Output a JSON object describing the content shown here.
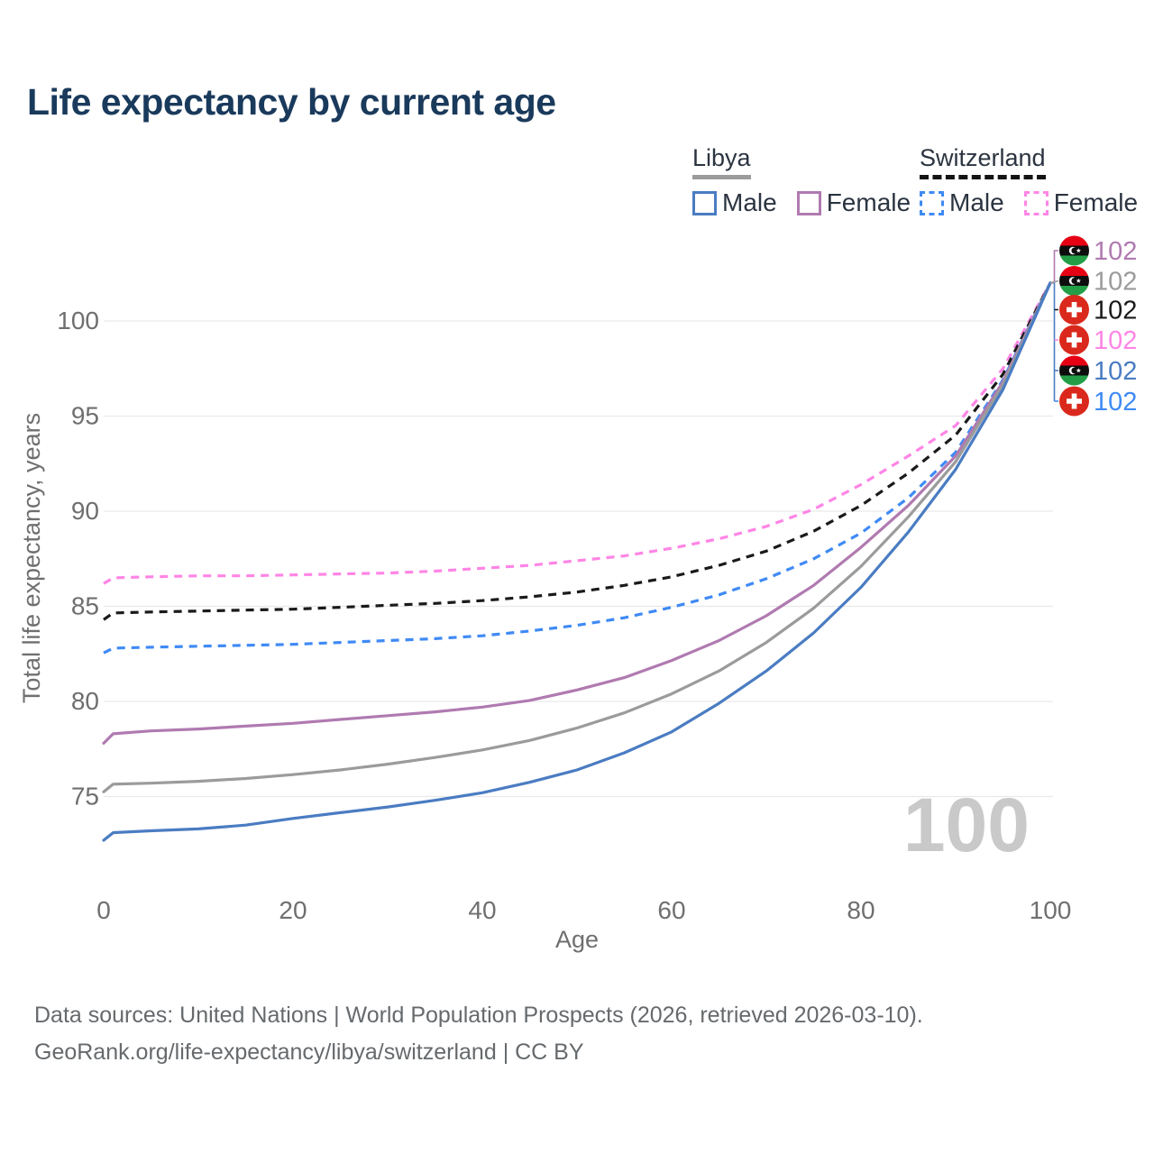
{
  "title": "Life expectancy by current age",
  "legend": {
    "groups": [
      {
        "label": "Libya",
        "underline_style": "solid",
        "underline_color": "#9b9b9b",
        "items": [
          {
            "label": "Male",
            "color": "#4a7cc2",
            "dash": false
          },
          {
            "label": "Female",
            "color": "#b07ab0",
            "dash": false
          }
        ]
      },
      {
        "label": "Switzerland",
        "underline_style": "dashed",
        "underline_color": "#141414",
        "items": [
          {
            "label": "Male",
            "color": "#3f8af5",
            "dash": true
          },
          {
            "label": "Female",
            "color": "#ff85e6",
            "dash": true
          }
        ]
      }
    ]
  },
  "chart_data": {
    "type": "line",
    "title": "Life expectancy by current age",
    "xlabel": "Age",
    "ylabel": "Total life expectancy, years",
    "xlim": [
      0,
      100
    ],
    "ylim": [
      72,
      103
    ],
    "x_ticks": [
      0,
      20,
      40,
      60,
      80,
      100
    ],
    "y_ticks": [
      75,
      80,
      85,
      90,
      95,
      100
    ],
    "grid": true,
    "legend_position": "top-right",
    "watermark_age": "100",
    "ages": [
      0,
      1,
      5,
      10,
      15,
      20,
      25,
      30,
      35,
      40,
      45,
      50,
      55,
      60,
      65,
      70,
      75,
      80,
      85,
      90,
      95,
      100
    ],
    "series": [
      {
        "id": "swiss_female",
        "name": "Switzerland Female",
        "country": "Switzerland",
        "sex": "Female",
        "color": "#ff85e6",
        "dash": true,
        "values": [
          86.2,
          86.5,
          86.55,
          86.6,
          86.6,
          86.65,
          86.7,
          86.75,
          86.85,
          87.0,
          87.15,
          87.4,
          87.65,
          88.05,
          88.55,
          89.2,
          90.1,
          91.4,
          92.9,
          94.5,
          97.5,
          102
        ]
      },
      {
        "id": "swiss_total",
        "name": "Switzerland",
        "country": "Switzerland",
        "sex": "Total",
        "color": "#1a1a1a",
        "dash": true,
        "values": [
          84.3,
          84.65,
          84.7,
          84.75,
          84.8,
          84.85,
          84.95,
          85.05,
          85.15,
          85.3,
          85.5,
          85.75,
          86.1,
          86.55,
          87.15,
          87.9,
          88.95,
          90.3,
          92.0,
          94.0,
          97.2,
          102
        ]
      },
      {
        "id": "swiss_male",
        "name": "Switzerland Male",
        "country": "Switzerland",
        "sex": "Male",
        "color": "#3f8af5",
        "dash": true,
        "values": [
          82.55,
          82.8,
          82.85,
          82.9,
          82.95,
          83.0,
          83.1,
          83.2,
          83.3,
          83.45,
          83.7,
          84.0,
          84.4,
          84.95,
          85.6,
          86.45,
          87.5,
          88.85,
          90.7,
          93.1,
          96.9,
          102
        ]
      },
      {
        "id": "libya_female",
        "name": "Libya Female",
        "country": "Libya",
        "sex": "Female",
        "color": "#b07ab0",
        "dash": false,
        "values": [
          77.8,
          78.3,
          78.45,
          78.55,
          78.7,
          78.85,
          79.05,
          79.25,
          79.45,
          79.7,
          80.05,
          80.6,
          81.25,
          82.15,
          83.2,
          84.5,
          86.1,
          88.1,
          90.3,
          92.9,
          96.8,
          102
        ]
      },
      {
        "id": "libya_total",
        "name": "Libya",
        "country": "Libya",
        "sex": "Total",
        "color": "#9b9b9b",
        "dash": false,
        "values": [
          75.25,
          75.65,
          75.7,
          75.8,
          75.95,
          76.15,
          76.4,
          76.7,
          77.05,
          77.45,
          77.95,
          78.6,
          79.4,
          80.4,
          81.6,
          83.1,
          84.9,
          87.1,
          89.7,
          92.6,
          96.65,
          102
        ]
      },
      {
        "id": "libya_male",
        "name": "Libya Male",
        "country": "Libya",
        "sex": "Male",
        "color": "#4a7cc2",
        "dash": false,
        "values": [
          72.7,
          73.1,
          73.2,
          73.3,
          73.5,
          73.85,
          74.15,
          74.45,
          74.8,
          75.2,
          75.75,
          76.4,
          77.3,
          78.4,
          79.9,
          81.6,
          83.6,
          86.0,
          88.9,
          92.2,
          96.4,
          102
        ]
      }
    ],
    "end_labels": [
      {
        "value": "102",
        "flag": "libya",
        "color": "#b07ab0",
        "series": "Libya Female"
      },
      {
        "value": "102",
        "flag": "libya",
        "color": "#9b9b9b",
        "series": "Libya"
      },
      {
        "value": "102",
        "flag": "switzerland",
        "color": "#1a1a1a",
        "series": "Switzerland"
      },
      {
        "value": "102",
        "flag": "switzerland",
        "color": "#ff85e6",
        "series": "Switzerland Female"
      },
      {
        "value": "102",
        "flag": "libya",
        "color": "#4a7cc2",
        "series": "Libya Male"
      },
      {
        "value": "102",
        "flag": "switzerland",
        "color": "#3f8af5",
        "series": "Switzerland Male"
      }
    ],
    "flag_colors": {
      "libya_red": "#e70013",
      "libya_black": "#0d0d0d",
      "libya_green": "#239e46",
      "swiss_red": "#da291c",
      "cross_white": "#ffffff"
    }
  },
  "footer": {
    "line1": "Data sources: United Nations | World Population Prospects (2026, retrieved 2026-03-10).",
    "line2": "GeoRank.org/life-expectancy/libya/switzerland | CC BY"
  }
}
